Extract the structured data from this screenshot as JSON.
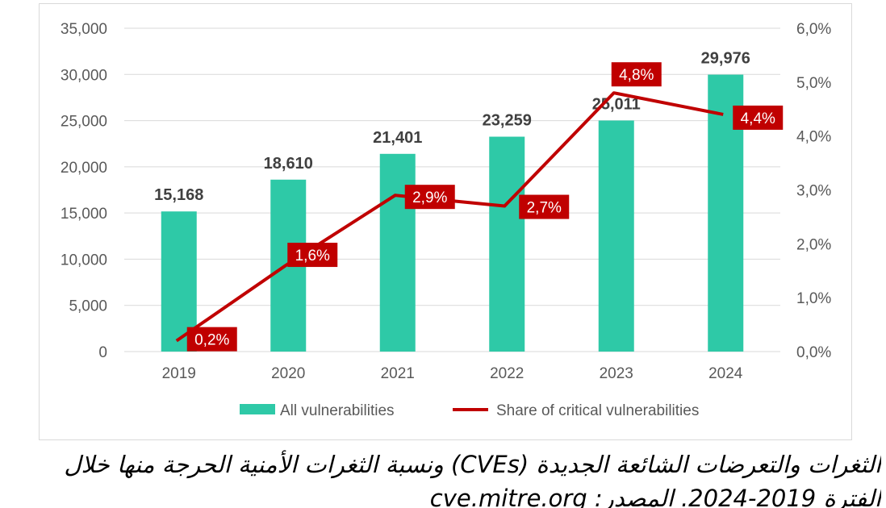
{
  "chart_data": {
    "type": "bar+line",
    "categories": [
      "2019",
      "2020",
      "2021",
      "2022",
      "2023",
      "2024"
    ],
    "series": [
      {
        "name": "All vulnerabilities",
        "type": "bar",
        "axis": "left",
        "values": [
          15168,
          18610,
          21401,
          23259,
          25011,
          29976
        ],
        "labels": [
          "15,168",
          "18,610",
          "21,401",
          "23,259",
          "25,011",
          "29,976"
        ],
        "color": "#2ec9a7"
      },
      {
        "name": "Share of critical vulnerabilities",
        "type": "line",
        "axis": "right",
        "values": [
          0.2,
          1.6,
          2.9,
          2.7,
          4.8,
          4.4
        ],
        "labels": [
          "0,2%",
          "1,6%",
          "2,9%",
          "2,7%",
          "4,8%",
          "4,4%"
        ],
        "color": "#c00000"
      }
    ],
    "y_left": {
      "min": 0,
      "max": 35000,
      "ticks": [
        "0",
        "5,000",
        "10,000",
        "15,000",
        "20,000",
        "25,000",
        "30,000",
        "35,000"
      ]
    },
    "y_right": {
      "min": 0,
      "max": 6,
      "ticks": [
        "0,0%",
        "1,0%",
        "2,0%",
        "3,0%",
        "4,0%",
        "5,0%",
        "6,0%"
      ]
    },
    "grid": true,
    "legend_position": "bottom",
    "title": "",
    "xlabel": "",
    "ylabel": ""
  },
  "caption": {
    "line1": "الثغرات والتعرضات الشائعة الجديدة (CVEs) ونسبة الثغرات الأمنية الحرجة منها خلال",
    "line2": "الفترة 2019-2024. المصدر: cve.mitre.org"
  },
  "colors": {
    "grid": "#d9d9d9",
    "axis_text": "#595959",
    "bar_label": "#404040",
    "label_box_text": "#ffffff"
  }
}
